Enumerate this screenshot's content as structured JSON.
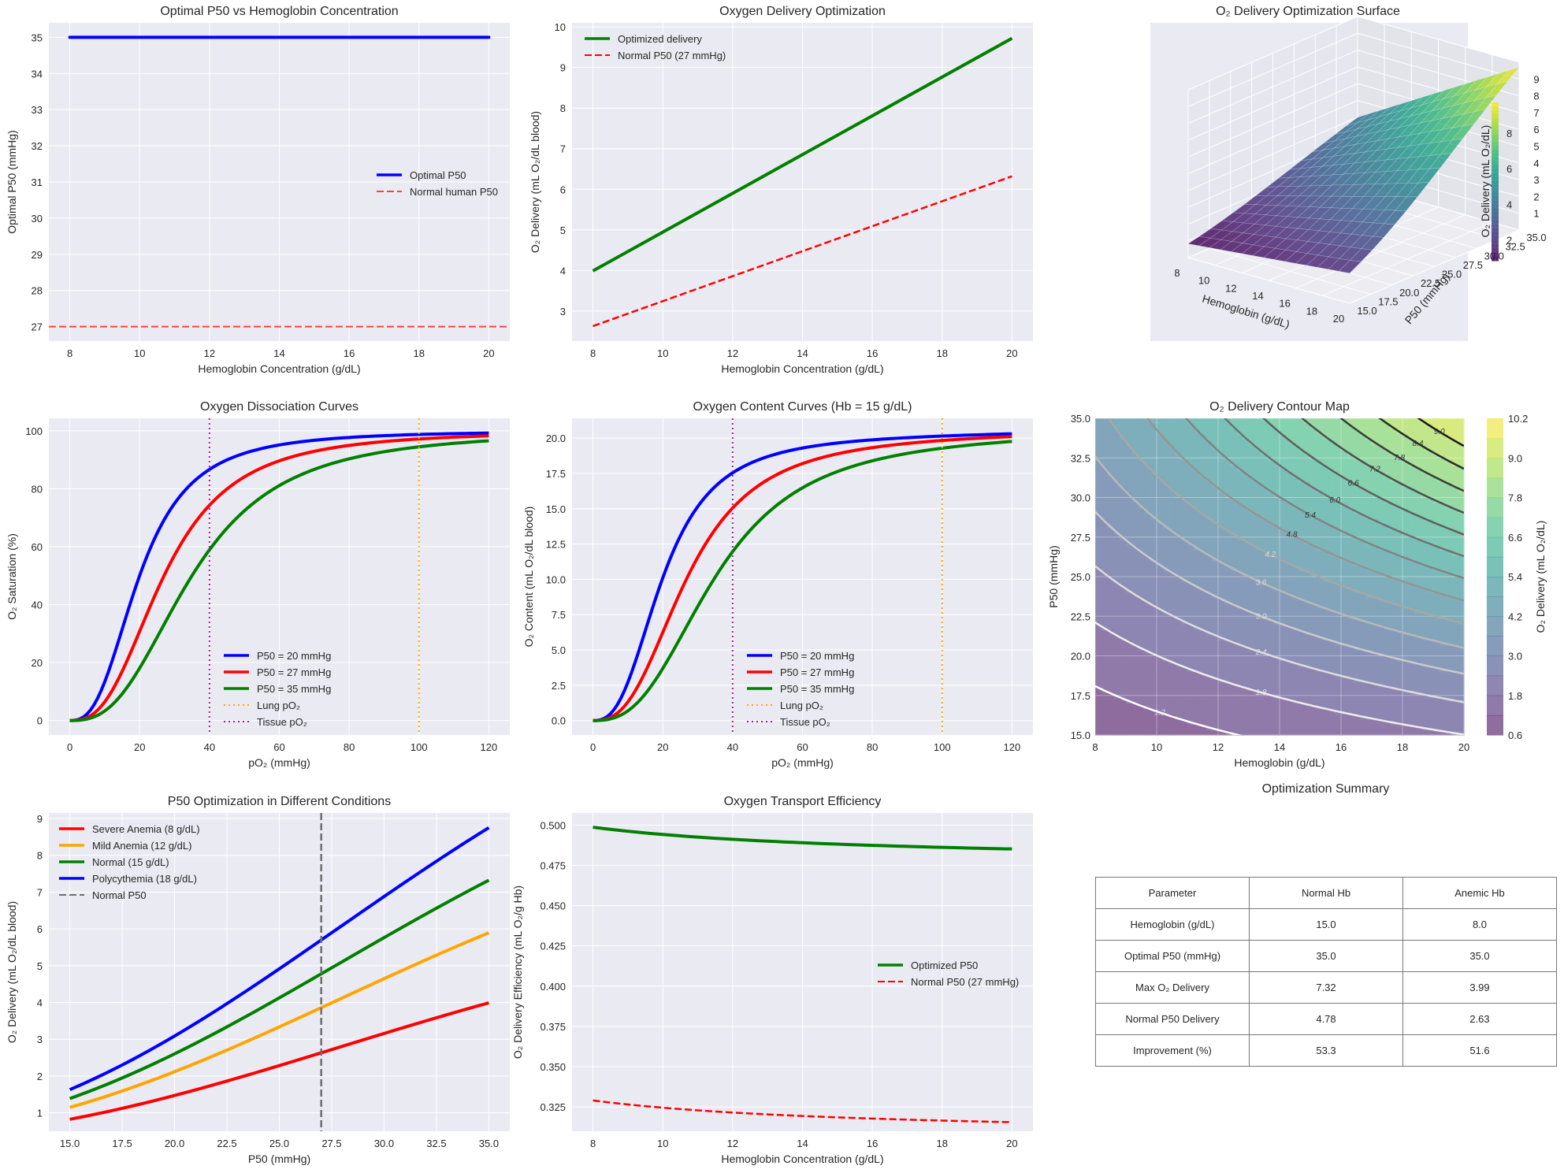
{
  "chart_data": [
    {
      "id": "p1",
      "type": "line",
      "title": "Optimal P50 vs Hemoglobin Concentration",
      "xlabel": "Hemoglobin Concentration (g/dL)",
      "ylabel": "Optimal P50 (mmHg)",
      "xlim": [
        7.4,
        20.6
      ],
      "ylim": [
        26.6,
        35.4
      ],
      "xticks": [
        8,
        10,
        12,
        14,
        16,
        18,
        20
      ],
      "yticks": [
        27,
        28,
        29,
        30,
        31,
        32,
        33,
        34,
        35
      ],
      "grid": true,
      "legend": "center-right",
      "series": [
        {
          "name": "Optimal P50",
          "color": "#0000ff",
          "style": "solid",
          "x": [
            8,
            20
          ],
          "y": [
            35,
            35
          ]
        },
        {
          "name": "Normal human P50",
          "color": "#ff4040",
          "style": "dashed",
          "hline": 27
        }
      ]
    },
    {
      "id": "p2",
      "type": "line",
      "title": "Oxygen Delivery Optimization",
      "xlabel": "Hemoglobin Concentration (g/dL)",
      "ylabel": "O₂ Delivery (mL O₂/dL blood)",
      "xlim": [
        7.4,
        20.6
      ],
      "ylim": [
        2.26,
        10.1
      ],
      "xticks": [
        8,
        10,
        12,
        14,
        16,
        18,
        20
      ],
      "yticks": [
        3,
        4,
        5,
        6,
        7,
        8,
        9,
        10
      ],
      "grid": true,
      "legend": "top-left",
      "series": [
        {
          "name": "Optimized delivery",
          "color": "#008000",
          "style": "solid",
          "x": [
            8,
            20
          ],
          "y": [
            3.99,
            9.72
          ]
        },
        {
          "name": "Normal P50 (27 mmHg)",
          "color": "#ff0000",
          "style": "dashed",
          "x": [
            8,
            20
          ],
          "y": [
            2.63,
            6.32
          ]
        }
      ]
    },
    {
      "id": "p3",
      "type": "surface3d",
      "title": "O₂ Delivery Optimization Surface",
      "xlabel": "Hemoglobin (g/dL)",
      "ylabel": "P50 (mmHg)",
      "zlabel": "O₂ Delivery (mL O₂/dL)",
      "xticks": [
        "8",
        "10",
        "12",
        "14",
        "16",
        "18",
        "20"
      ],
      "yticks": [
        "15.0",
        "17.5",
        "20.0",
        "22.5",
        "25.0",
        "27.5",
        "30.0",
        "32.5",
        "35.0"
      ],
      "zticks": [
        "1",
        "2",
        "3",
        "4",
        "5",
        "6",
        "7",
        "8",
        "9"
      ],
      "colorbar_ticks": [
        "2",
        "4",
        "6",
        "8"
      ],
      "zrange": [
        0.83,
        9.72
      ],
      "colormap": "viridis"
    },
    {
      "id": "p4",
      "type": "line",
      "title": "Oxygen Dissociation Curves",
      "xlabel": "pO₂ (mmHg)",
      "ylabel": "O₂ Saturation (%)",
      "xlim": [
        -6,
        126
      ],
      "ylim": [
        -5,
        104.3
      ],
      "xticks": [
        0,
        20,
        40,
        60,
        80,
        100,
        120
      ],
      "yticks": [
        0,
        20,
        40,
        60,
        80,
        100
      ],
      "grid": true,
      "legend": "lower-center",
      "hill_n": 2.7,
      "series": [
        {
          "name": "P50 = 20 mmHg",
          "color": "#0000ff",
          "p50": 20
        },
        {
          "name": "P50 = 27 mmHg",
          "color": "#ff0000",
          "p50": 27
        },
        {
          "name": "P50 = 35 mmHg",
          "color": "#008000",
          "p50": 35
        },
        {
          "name": "Lung pO₂",
          "color": "#ffa500",
          "style": "dotted",
          "vline": 100
        },
        {
          "name": "Tissue pO₂",
          "color": "#a020a0",
          "style": "dotted",
          "vline": 40
        }
      ]
    },
    {
      "id": "p5",
      "type": "line",
      "title": "Oxygen Content Curves (Hb = 15 g/dL)",
      "xlabel": "pO₂ (mmHg)",
      "ylabel": "O₂ Content (mL O₂/dL blood)",
      "xlim": [
        -6,
        126
      ],
      "ylim": [
        -1.02,
        21.4
      ],
      "xticks": [
        0,
        20,
        40,
        60,
        80,
        100,
        120
      ],
      "yticks": [
        0.0,
        2.5,
        5.0,
        7.5,
        10.0,
        12.5,
        15.0,
        17.5,
        20.0
      ],
      "ytick_labels": [
        "0.0",
        "2.5",
        "5.0",
        "7.5",
        "10.0",
        "12.5",
        "15.0",
        "17.5",
        "20.0"
      ],
      "grid": true,
      "legend": "lower-center",
      "hill_n": 2.7,
      "hb": 15,
      "series": [
        {
          "name": "P50 = 20 mmHg",
          "color": "#0000ff",
          "p50": 20
        },
        {
          "name": "P50 = 27 mmHg",
          "color": "#ff0000",
          "p50": 27
        },
        {
          "name": "P50 = 35 mmHg",
          "color": "#008000",
          "p50": 35
        },
        {
          "name": "Lung pO₂",
          "color": "#ffa500",
          "style": "dotted",
          "vline": 100
        },
        {
          "name": "Tissue pO₂",
          "color": "#a020a0",
          "style": "dotted",
          "vline": 40
        }
      ]
    },
    {
      "id": "p6",
      "type": "heatmap",
      "title": "O₂ Delivery Contour Map",
      "xlabel": "Hemoglobin (g/dL)",
      "ylabel": "P50 (mmHg)",
      "colorbar_label": "O₂ Delivery (mL O₂/dL)",
      "xlim": [
        8,
        20
      ],
      "ylim": [
        15,
        35
      ],
      "xticks": [
        8,
        10,
        12,
        14,
        16,
        18,
        20
      ],
      "yticks": [
        "15.0",
        "17.5",
        "20.0",
        "22.5",
        "25.0",
        "27.5",
        "30.0",
        "32.5",
        "35.0"
      ],
      "levels": [
        0.6,
        1.2,
        1.8,
        2.4,
        3.0,
        3.6,
        4.2,
        4.8,
        5.4,
        6.0,
        6.6,
        7.2,
        7.8,
        8.4,
        9.0,
        9.6,
        10.2
      ],
      "colorbar_ticks": [
        "0.6",
        "1.8",
        "3.0",
        "4.2",
        "5.4",
        "6.6",
        "7.8",
        "9.0",
        "10.2"
      ],
      "contour_labels": [
        "1.2",
        "1.8",
        "2.4",
        "3.0",
        "3.6",
        "4.2",
        "4.8",
        "5.4",
        "6.0",
        "6.6",
        "7.2",
        "7.8",
        "8.4",
        "9.0"
      ]
    },
    {
      "id": "p7",
      "type": "line",
      "title": "P50 Optimization in Different Conditions",
      "xlabel": "P50 (mmHg)",
      "ylabel": "O₂ Delivery (mL O₂/dL blood)",
      "xlim": [
        14,
        36
      ],
      "ylim": [
        0.5,
        9.15
      ],
      "xticks": [
        15,
        17.5,
        20,
        22.5,
        25,
        27.5,
        30,
        32.5,
        35
      ],
      "xtick_labels": [
        "15.0",
        "17.5",
        "20.0",
        "22.5",
        "25.0",
        "27.5",
        "30.0",
        "32.5",
        "35.0"
      ],
      "yticks": [
        1,
        2,
        3,
        4,
        5,
        6,
        7,
        8,
        9
      ],
      "grid": true,
      "legend": "top-left",
      "series": [
        {
          "name": "Severe Anemia (8 g/dL)",
          "color": "#ff0000",
          "hb": 8
        },
        {
          "name": "Mild Anemia (12 g/dL)",
          "color": "#ffa500",
          "hb": 12
        },
        {
          "name": "Normal (15 g/dL)",
          "color": "#008000",
          "hb": 15
        },
        {
          "name": "Polycythemia (18 g/dL)",
          "color": "#0000ff",
          "hb": 18
        },
        {
          "name": "Normal P50",
          "color": "#6e6e6e",
          "style": "dashed",
          "vline": 27
        }
      ]
    },
    {
      "id": "p8",
      "type": "line",
      "title": "Oxygen Transport Efficiency",
      "xlabel": "Hemoglobin Concentration (g/dL)",
      "ylabel": "O₂ Delivery Efficiency (mL O₂/g Hb)",
      "xlim": [
        7.4,
        20.6
      ],
      "ylim": [
        0.3099,
        0.5075
      ],
      "xticks": [
        8,
        10,
        12,
        14,
        16,
        18,
        20
      ],
      "yticks": [
        0.325,
        0.35,
        0.375,
        0.4,
        0.425,
        0.45,
        0.475,
        0.5
      ],
      "ytick_labels": [
        "0.325",
        "0.350",
        "0.375",
        "0.400",
        "0.425",
        "0.450",
        "0.475",
        "0.500"
      ],
      "grid": true,
      "legend": "center-right",
      "series": [
        {
          "name": "Optimized P50",
          "color": "#008000",
          "style": "solid",
          "p50": 35
        },
        {
          "name": "Normal P50 (27 mmHg)",
          "color": "#ff0000",
          "style": "dashed",
          "p50": 27
        }
      ]
    },
    {
      "id": "p9",
      "type": "table",
      "title": "Optimization Summary",
      "columns": [
        "Parameter",
        "Normal Hb",
        "Anemic Hb"
      ],
      "rows": [
        [
          "Hemoglobin (g/dL)",
          "15.0",
          "8.0"
        ],
        [
          "Optimal P50 (mmHg)",
          "35.0",
          "35.0"
        ],
        [
          "Max O₂ Delivery",
          "7.32",
          "3.99"
        ],
        [
          "Normal P50 Delivery",
          "4.78",
          "2.63"
        ],
        [
          "Improvement (%)",
          "53.3",
          "51.6"
        ]
      ]
    }
  ]
}
